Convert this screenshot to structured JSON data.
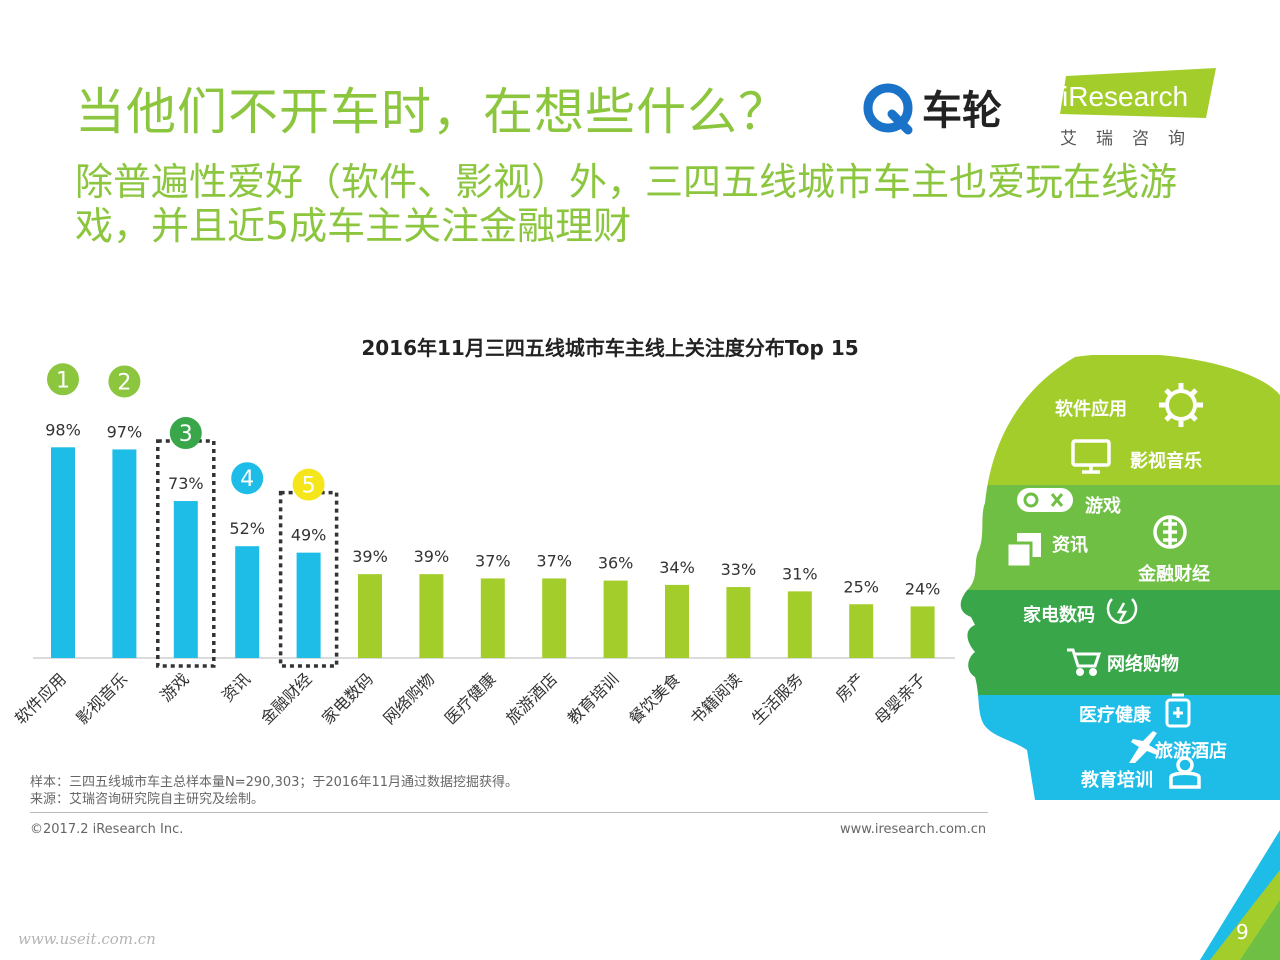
{
  "header": {
    "title": "当他们不开车时，在想些什么？",
    "subtitle": "除普遍性爱好（软件、影视）外，三四五线城市车主也爱玩在线游戏，并且近5成车主关注金融理财",
    "chekuang_logo_text": "车轮",
    "iresearch_logo_text": "iResearch",
    "iresearch_sub_text": "艾瑞咨询"
  },
  "chart_data": {
    "type": "bar",
    "title": "2016年11月三四五线城市车主线上关注度分布Top 15",
    "categories": [
      "软件应用",
      "影视音乐",
      "游戏",
      "资讯",
      "金融财经",
      "家电数码",
      "网络购物",
      "医疗健康",
      "旅游酒店",
      "教育培训",
      "餐饮美食",
      "书籍阅读",
      "生活服务",
      "房产",
      "母婴亲子"
    ],
    "values": [
      98,
      97,
      73,
      52,
      49,
      39,
      39,
      37,
      37,
      36,
      34,
      33,
      31,
      25,
      24
    ],
    "value_labels": [
      "98%",
      "97%",
      "73%",
      "52%",
      "49%",
      "39%",
      "39%",
      "37%",
      "37%",
      "36%",
      "34%",
      "33%",
      "31%",
      "25%",
      "24%"
    ],
    "unit": "%",
    "ylim": [
      0,
      100
    ],
    "grid": false,
    "legend": "none",
    "rank_badges": [
      {
        "rank": "1",
        "index": 0,
        "color": "#8cc63f"
      },
      {
        "rank": "2",
        "index": 1,
        "color": "#8cc63f"
      },
      {
        "rank": "3",
        "index": 2,
        "color": "#3aa64a"
      },
      {
        "rank": "4",
        "index": 3,
        "color": "#1dbde8"
      },
      {
        "rank": "5",
        "index": 4,
        "color": "#f5e61c"
      }
    ],
    "highlight_boxes": [
      2,
      4
    ],
    "colors": {
      "top_bars": "#1dbde8",
      "other_bars": "#a3cd2a"
    }
  },
  "head_infographic": {
    "labels": [
      "软件应用",
      "影视音乐",
      "游戏",
      "资讯",
      "金融财经",
      "家电数码",
      "网络购物",
      "医疗健康",
      "旅游酒店",
      "教育培训"
    ],
    "icons": [
      "gear-icon",
      "monitor-icon",
      "gamepad-icon",
      "news-icon",
      "finance-icon",
      "appliance-icon",
      "cart-icon",
      "medical-icon",
      "airplane-icon",
      "student-icon"
    ],
    "colors": [
      "#a3cd2a",
      "#6fbf44",
      "#3aa64a",
      "#1dbde8"
    ]
  },
  "footer": {
    "sample_note": "样本：三四五线城市车主总样本量N=290,303；于2016年11月通过数据挖掘获得。",
    "source_note": "来源：艾瑞咨询研究院自主研究及绘制。",
    "copyright": "©2017.2 iResearch Inc.",
    "website": "www.iresearch.com.cn",
    "watermark": "www.useit.com.cn",
    "page_number": "9"
  }
}
